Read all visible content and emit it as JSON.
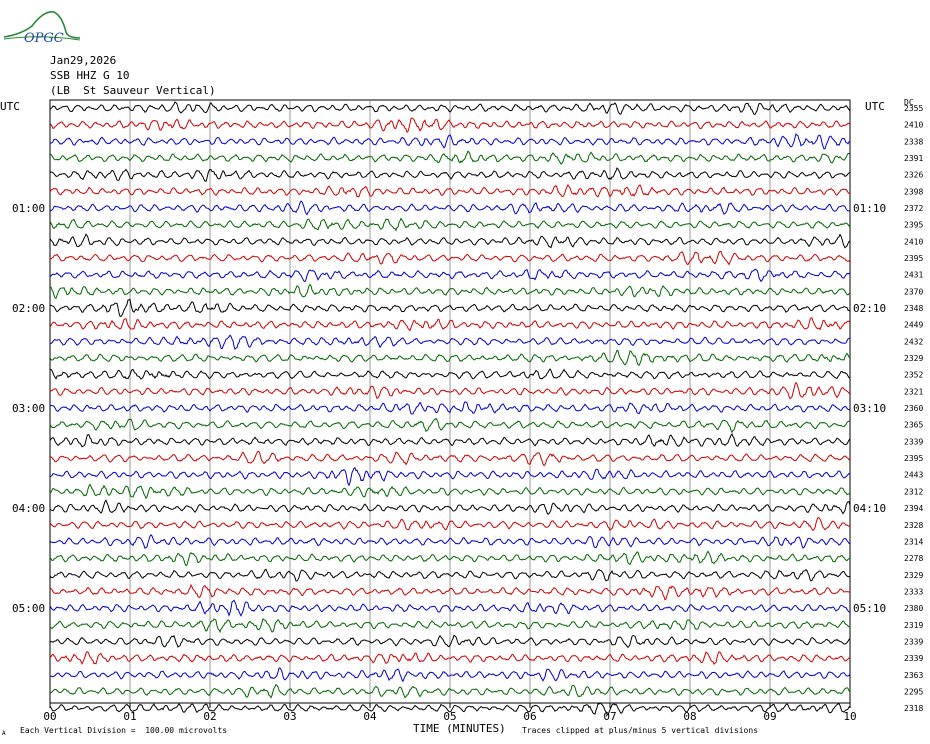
{
  "header": {
    "date": "Jan29,2026",
    "station": "SSB HHZ G 10",
    "location": "(LB  St Sauveur Vertical)",
    "logo_text": "OPGC"
  },
  "axes": {
    "left_label": "UTC",
    "right_label": "UTC",
    "right_top_label": "DC",
    "xlabel": "TIME (MINUTES)",
    "footer_left": "Each Vertical Division =  100.00 microvolts",
    "footer_right": "Traces clipped at plus/minus 5 vertical divisions",
    "corner_mark": "A"
  },
  "chart_data": {
    "type": "line",
    "xlim": [
      0,
      10
    ],
    "x_ticks": [
      "00",
      "01",
      "02",
      "03",
      "04",
      "05",
      "06",
      "07",
      "08",
      "09",
      "10"
    ],
    "left_time_labels": [
      "01:00",
      "02:00",
      "03:00",
      "04:00",
      "05:00"
    ],
    "right_time_labels": [
      "01:10",
      "02:10",
      "03:10",
      "04:10",
      "05:10"
    ],
    "trace_colors": [
      "#000000",
      "#cc0000",
      "#0000cc",
      "#006600"
    ],
    "dc_offsets": [
      "2355",
      "2410",
      "2338",
      "2391",
      "2326",
      "2398",
      "2372",
      "2395",
      "2410",
      "2395",
      "2431",
      "2370",
      "2348",
      "2449",
      "2432",
      "2329",
      "2352",
      "2321",
      "2360",
      "2365",
      "2339",
      "2395",
      "2443",
      "2312",
      "2394",
      "2328",
      "2314",
      "2278",
      "2329",
      "2333",
      "2380",
      "2319",
      "2339",
      "2339",
      "2363",
      "2295",
      "2318"
    ],
    "grid": "vertical"
  }
}
